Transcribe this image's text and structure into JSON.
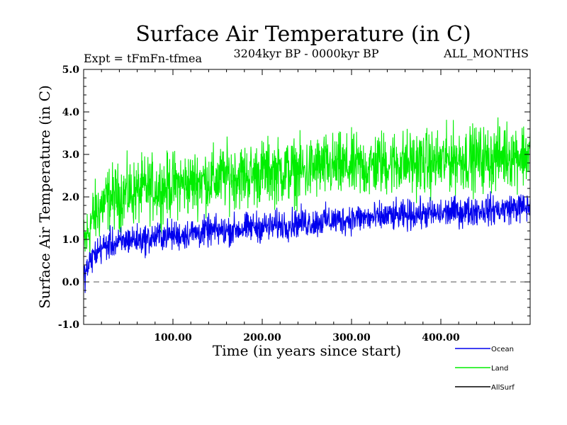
{
  "chart_data": {
    "type": "line",
    "title": "Surface Air Temperature (in C)",
    "subtitle_left": "Expt = tFmFn-tfmea",
    "subtitle_center": "3204kyr BP - 0000kyr BP",
    "subtitle_right": "ALL_MONTHS",
    "xlabel": "Time (in years since start)",
    "ylabel": "Surface Air Temperature (in C)",
    "xlim": [
      0,
      500
    ],
    "ylim": [
      -1.0,
      5.0
    ],
    "x_ticks": [
      100,
      200,
      300,
      400
    ],
    "x_tick_labels": [
      "100.00",
      "200.00",
      "300.00",
      "400.00"
    ],
    "y_ticks": [
      -1.0,
      0.0,
      1.0,
      2.0,
      3.0,
      4.0,
      5.0
    ],
    "y_tick_labels": [
      "-1.0",
      "0.0",
      "1.0",
      "2.0",
      "3.0",
      "4.0",
      "5.0"
    ],
    "reference_line": {
      "y": 0.0,
      "style": "dashed"
    },
    "legend_position": "bottom-right",
    "series": [
      {
        "name": "Land",
        "color": "#00ee00",
        "x": [
          0,
          10,
          20,
          30,
          40,
          50,
          60,
          70,
          80,
          90,
          100,
          110,
          120,
          130,
          140,
          150,
          160,
          170,
          180,
          190,
          200,
          210,
          220,
          230,
          240,
          250,
          260,
          270,
          280,
          290,
          300,
          310,
          320,
          330,
          340,
          350,
          360,
          370,
          380,
          390,
          400,
          410,
          420,
          430,
          440,
          450,
          460,
          470,
          480,
          490,
          500
        ],
        "values": [
          0.8,
          1.5,
          1.8,
          2.0,
          2.0,
          2.1,
          2.1,
          2.2,
          2.2,
          2.2,
          2.3,
          2.3,
          2.3,
          2.4,
          2.4,
          2.4,
          2.5,
          2.5,
          2.5,
          2.5,
          2.6,
          2.6,
          2.6,
          2.6,
          2.6,
          2.6,
          2.7,
          2.7,
          2.7,
          2.7,
          2.7,
          2.7,
          2.7,
          2.8,
          2.8,
          2.8,
          2.8,
          2.8,
          2.8,
          2.8,
          2.8,
          2.9,
          2.9,
          2.9,
          2.9,
          2.9,
          2.9,
          3.0,
          3.0,
          3.0,
          3.0
        ],
        "spread": 0.75
      },
      {
        "name": "Ocean",
        "color": "#0000ee",
        "x": [
          0,
          10,
          20,
          30,
          40,
          50,
          60,
          70,
          80,
          90,
          100,
          110,
          120,
          130,
          140,
          150,
          160,
          170,
          180,
          190,
          200,
          210,
          220,
          230,
          240,
          250,
          260,
          270,
          280,
          290,
          300,
          310,
          320,
          330,
          340,
          350,
          360,
          370,
          380,
          390,
          400,
          410,
          420,
          430,
          440,
          450,
          460,
          470,
          480,
          490,
          500
        ],
        "values": [
          0.1,
          0.6,
          0.8,
          0.9,
          0.9,
          1.0,
          1.0,
          1.0,
          1.05,
          1.1,
          1.1,
          1.1,
          1.15,
          1.15,
          1.2,
          1.2,
          1.2,
          1.25,
          1.25,
          1.3,
          1.3,
          1.3,
          1.35,
          1.35,
          1.4,
          1.4,
          1.4,
          1.45,
          1.45,
          1.45,
          1.5,
          1.5,
          1.5,
          1.5,
          1.55,
          1.55,
          1.55,
          1.6,
          1.6,
          1.6,
          1.6,
          1.65,
          1.65,
          1.65,
          1.7,
          1.7,
          1.7,
          1.7,
          1.75,
          1.75,
          1.75
        ],
        "spread": 0.35
      },
      {
        "name": "AllSurf",
        "color": "#000000",
        "x": [],
        "values": [],
        "spread": 0
      }
    ]
  }
}
